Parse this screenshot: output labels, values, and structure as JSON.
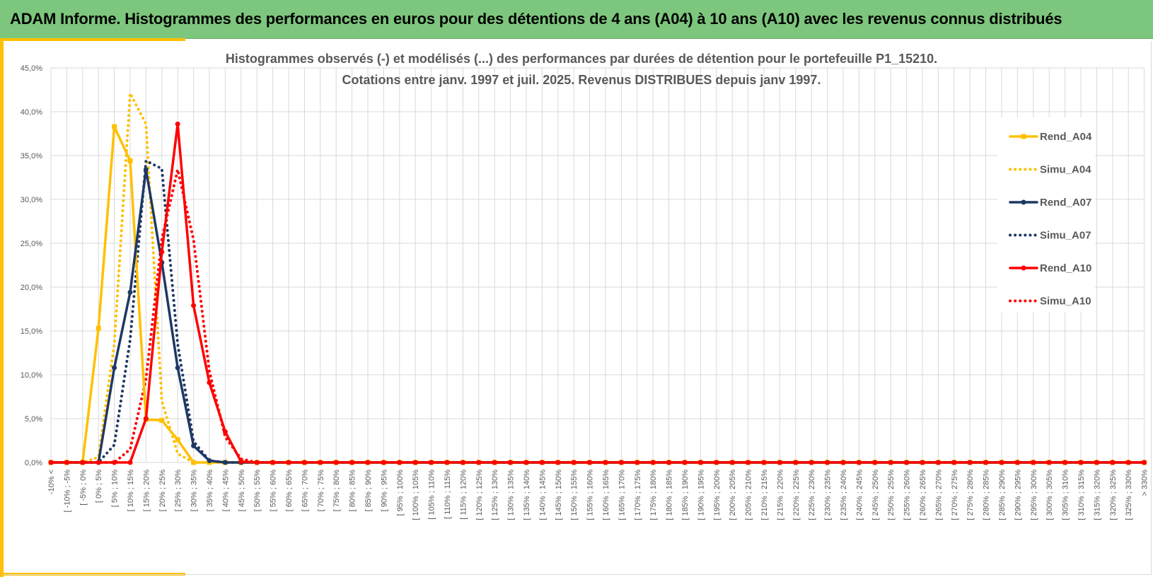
{
  "header": {
    "title": "ADAM Informe. Histogrammes des performances en euros pour des détentions de 4 ans (A04) à 10 ans (A10) avec les revenus connus distribués"
  },
  "colors": {
    "banner": "#7dc67d",
    "accent": "#ffc000",
    "a04": "#ffc000",
    "a07": "#1f3864",
    "a10": "#ff0000"
  },
  "chart_data": {
    "type": "line",
    "title": [
      "Histogrammes observés (-) et modélisés (...) des performances par durées de détention pour le portefeuille P1_15210.",
      "Cotations entre janv. 1997 et juil. 2025. Revenus DISTRIBUES depuis janv 1997."
    ],
    "xlabel": "",
    "ylabel": "",
    "ylim": [
      0,
      45
    ],
    "yticks": [
      "0,0%",
      "5,0%",
      "10,0%",
      "15,0%",
      "20,0%",
      "25,0%",
      "30,0%",
      "35,0%",
      "40,0%",
      "45,0%"
    ],
    "grid": true,
    "legend_position": "right",
    "categories": [
      "-10% <",
      "[ -10% ; -5%",
      "[ -5% ; 0%",
      "[ 0% ; 5%",
      "[ 5% ; 10%",
      "[ 10% ; 15%",
      "[ 15% ; 20%",
      "[ 20% ; 25%",
      "[ 25% ; 30%",
      "[ 30% ; 35%",
      "[ 35% ; 40%",
      "[ 40% ; 45%",
      "[ 45% ; 50%",
      "[ 50% ; 55%",
      "[ 55% ; 60%",
      "[ 60% ; 65%",
      "[ 65% ; 70%",
      "[ 70% ; 75%",
      "[ 75% ; 80%",
      "[ 80% ; 85%",
      "[ 85% ; 90%",
      "[ 90% ; 95%",
      "[ 95% ; 100%",
      "[ 100% ; 105%",
      "[ 105% ; 110%",
      "[ 110% ; 115%",
      "[ 115% ; 120%",
      "[ 120% ; 125%",
      "[ 125% ; 130%",
      "[ 130% ; 135%",
      "[ 135% ; 140%",
      "[ 140% ; 145%",
      "[ 145% ; 150%",
      "[ 150% ; 155%",
      "[ 155% ; 160%",
      "[ 160% ; 165%",
      "[ 165% ; 170%",
      "[ 170% ; 175%",
      "[ 175% ; 180%",
      "[ 180% ; 185%",
      "[ 185% ; 190%",
      "[ 190% ; 195%",
      "[ 195% ; 200%",
      "[ 200% ; 205%",
      "[ 205% ; 210%",
      "[ 210% ; 215%",
      "[ 215% ; 220%",
      "[ 220% ; 225%",
      "[ 225% ; 230%",
      "[ 230% ; 235%",
      "[ 235% ; 240%",
      "[ 240% ; 245%",
      "[ 245% ; 250%",
      "[ 250% ; 255%",
      "[ 255% ; 260%",
      "[ 260% ; 265%",
      "[ 265% ; 270%",
      "[ 270% ; 275%",
      "[ 275% ; 280%",
      "[ 280% ; 285%",
      "[ 285% ; 290%",
      "[ 290% ; 295%",
      "[ 295% ; 300%",
      "[ 300% ; 305%",
      "[ 305% ; 310%",
      "[ 310% ; 315%",
      "[ 315% ; 320%",
      "[ 320% ; 325%",
      "[ 325% ; 330%",
      "> 330%"
    ],
    "series": [
      {
        "name": "Rend_A04",
        "color": "#ffc000",
        "style": "solid",
        "marker": "square",
        "values": [
          0,
          0,
          0,
          15.3,
          38.3,
          34.4,
          4.9,
          4.8,
          2.6,
          0,
          0,
          0,
          0,
          0,
          0,
          0,
          0,
          0,
          0,
          0,
          0,
          0,
          0,
          0,
          0,
          0,
          0,
          0,
          0,
          0,
          0,
          0,
          0,
          0,
          0,
          0,
          0,
          0,
          0,
          0,
          0,
          0,
          0,
          0,
          0,
          0,
          0,
          0,
          0,
          0,
          0,
          0,
          0,
          0,
          0,
          0,
          0,
          0,
          0,
          0,
          0,
          0,
          0,
          0,
          0,
          0,
          0,
          0,
          0,
          0
        ]
      },
      {
        "name": "Simu_A04",
        "color": "#ffc000",
        "style": "dotted",
        "marker": "none",
        "values": [
          0,
          0,
          0,
          0.6,
          13.5,
          42.1,
          38.6,
          7.0,
          1.0,
          0,
          0,
          0,
          0,
          0,
          0,
          0,
          0,
          0,
          0,
          0,
          0,
          0,
          0,
          0,
          0,
          0,
          0,
          0,
          0,
          0,
          0,
          0,
          0,
          0,
          0,
          0,
          0,
          0,
          0,
          0,
          0,
          0,
          0,
          0,
          0,
          0,
          0,
          0,
          0,
          0,
          0,
          0,
          0,
          0,
          0,
          0,
          0,
          0,
          0,
          0,
          0,
          0,
          0,
          0,
          0,
          0,
          0,
          0,
          0,
          0
        ]
      },
      {
        "name": "Rend_A07",
        "color": "#1f3864",
        "style": "solid",
        "marker": "circle",
        "values": [
          0,
          0,
          0,
          0,
          10.8,
          19.4,
          33.4,
          22.8,
          10.8,
          1.9,
          0.2,
          0,
          0,
          0,
          0,
          0,
          0,
          0,
          0,
          0,
          0,
          0,
          0,
          0,
          0,
          0,
          0,
          0,
          0,
          0,
          0,
          0,
          0,
          0,
          0,
          0,
          0,
          0,
          0,
          0,
          0,
          0,
          0,
          0,
          0,
          0,
          0,
          0,
          0,
          0,
          0,
          0,
          0,
          0,
          0,
          0,
          0,
          0,
          0,
          0,
          0,
          0,
          0,
          0,
          0,
          0,
          0,
          0,
          0,
          0
        ]
      },
      {
        "name": "Simu_A07",
        "color": "#1f3864",
        "style": "dotted",
        "marker": "none",
        "values": [
          0,
          0,
          0,
          0,
          2.0,
          14.0,
          34.4,
          33.5,
          13.5,
          2.4,
          0.2,
          0,
          0,
          0,
          0,
          0,
          0,
          0,
          0,
          0,
          0,
          0,
          0,
          0,
          0,
          0,
          0,
          0,
          0,
          0,
          0,
          0,
          0,
          0,
          0,
          0,
          0,
          0,
          0,
          0,
          0,
          0,
          0,
          0,
          0,
          0,
          0,
          0,
          0,
          0,
          0,
          0,
          0,
          0,
          0,
          0,
          0,
          0,
          0,
          0,
          0,
          0,
          0,
          0,
          0,
          0,
          0,
          0,
          0,
          0
        ]
      },
      {
        "name": "Rend_A10",
        "color": "#ff0000",
        "style": "solid",
        "marker": "circle",
        "values": [
          0,
          0,
          0,
          0,
          0,
          0,
          5.0,
          24.0,
          38.6,
          17.9,
          9.1,
          3.5,
          0.1,
          0,
          0,
          0,
          0,
          0,
          0,
          0,
          0,
          0,
          0,
          0,
          0,
          0,
          0,
          0,
          0,
          0,
          0,
          0,
          0,
          0,
          0,
          0,
          0,
          0,
          0,
          0,
          0,
          0,
          0,
          0,
          0,
          0,
          0,
          0,
          0,
          0,
          0,
          0,
          0,
          0,
          0,
          0,
          0,
          0,
          0,
          0,
          0,
          0,
          0,
          0,
          0,
          0,
          0,
          0,
          0,
          0
        ]
      },
      {
        "name": "Simu_A10",
        "color": "#ff0000",
        "style": "dotted",
        "marker": "none",
        "values": [
          0,
          0,
          0,
          0,
          0,
          1.5,
          9.5,
          25.5,
          33.4,
          25.4,
          10.4,
          2.9,
          0.4,
          0,
          0,
          0,
          0,
          0,
          0,
          0,
          0,
          0,
          0,
          0,
          0,
          0,
          0,
          0,
          0,
          0,
          0,
          0,
          0,
          0,
          0,
          0,
          0,
          0,
          0,
          0,
          0,
          0,
          0,
          0,
          0,
          0,
          0,
          0,
          0,
          0,
          0,
          0,
          0,
          0,
          0,
          0,
          0,
          0,
          0,
          0,
          0,
          0,
          0,
          0,
          0,
          0,
          0,
          0,
          0,
          0
        ]
      }
    ]
  }
}
